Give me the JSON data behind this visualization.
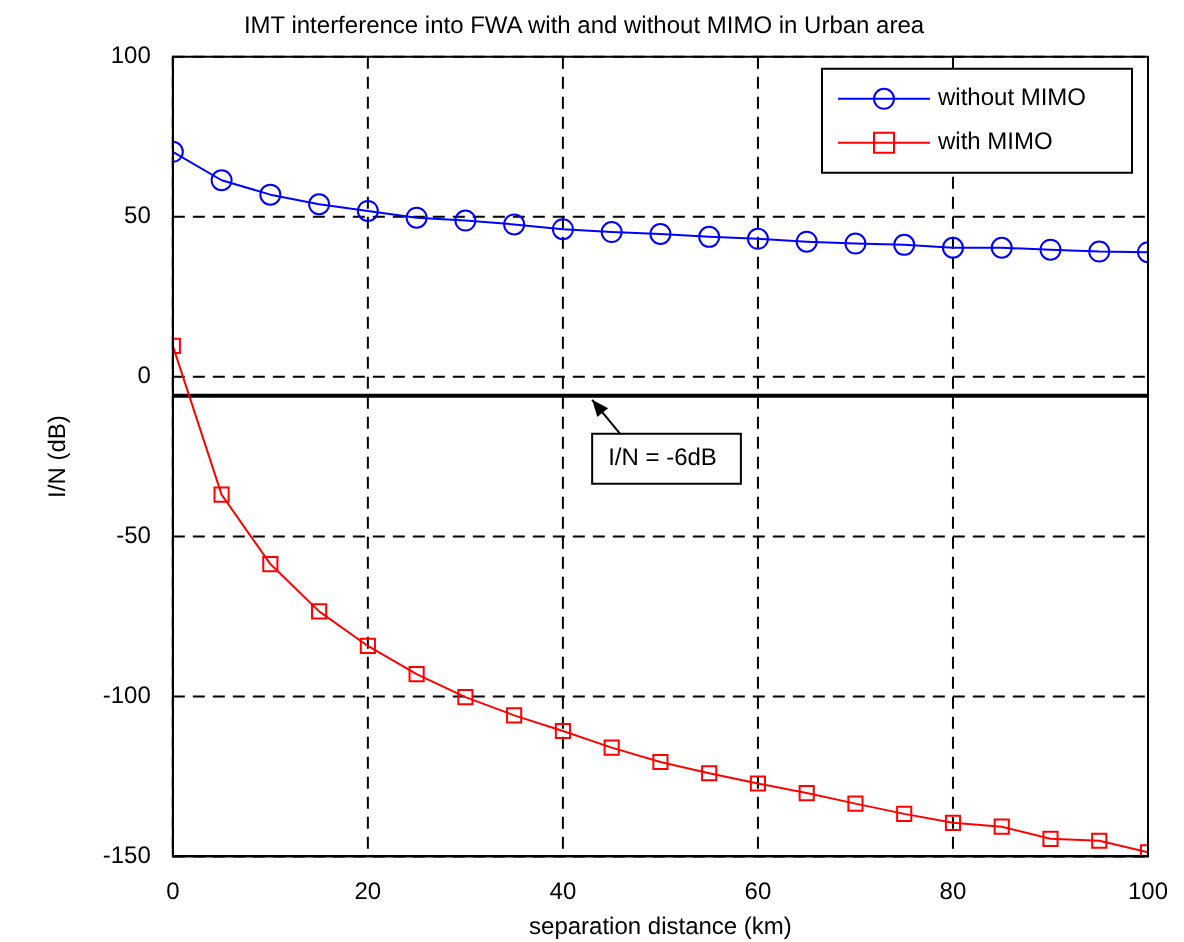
{
  "chart_data": {
    "type": "line",
    "title": "IMT interference into FWA with and without MIMO in Urban area",
    "xlabel": "separation distance (km)",
    "ylabel": "I/N (dB)",
    "x": [
      0,
      5,
      10,
      15,
      20,
      25,
      30,
      35,
      40,
      45,
      50,
      55,
      60,
      65,
      70,
      75,
      80,
      85,
      90,
      95,
      100
    ],
    "series": [
      {
        "name": "without MIMO",
        "color": "#0000ff",
        "marker": "circle",
        "values": [
          70.3,
          61.4,
          56.9,
          53.9,
          51.8,
          49.7,
          48.8,
          47.6,
          46.1,
          45.2,
          44.6,
          43.7,
          43.1,
          42.2,
          41.6,
          41.2,
          40.3,
          40.3,
          39.7,
          39.1,
          38.9
        ]
      },
      {
        "name": "with MIMO",
        "color": "#ff0000",
        "marker": "square",
        "values": [
          9.6,
          -36.9,
          -58.6,
          -73.4,
          -84.2,
          -93,
          -100.2,
          -105.9,
          -110.8,
          -116,
          -120.5,
          -124,
          -127.2,
          -130.2,
          -133.5,
          -136.7,
          -139.5,
          -140.7,
          -144.5,
          -145.1,
          -148.7
        ]
      }
    ],
    "xlim": [
      0,
      100
    ],
    "xticks": [
      0,
      20,
      40,
      60,
      80,
      100
    ],
    "ylim": [
      -150,
      100
    ],
    "yticks": [
      -150,
      -100,
      -50,
      0,
      50,
      100
    ],
    "ref_lines": [
      {
        "axis": "y",
        "value": -6,
        "label": "I/N = -6dB",
        "color": "#000000"
      }
    ],
    "grid": true,
    "legend": "top right"
  }
}
